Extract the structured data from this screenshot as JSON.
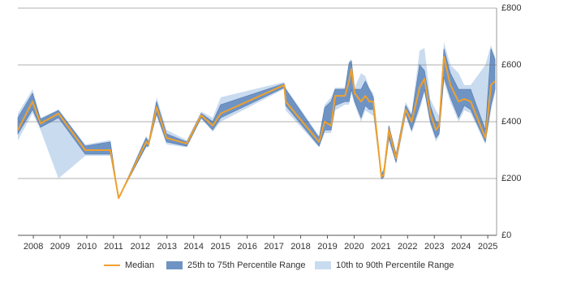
{
  "chart_data": {
    "type": "line",
    "x": [
      2007.42,
      2007.97,
      2008.27,
      2008.94,
      2009.94,
      2010.88,
      2011.19,
      2012.22,
      2012.31,
      2012.61,
      2012.98,
      2013.74,
      2014.28,
      2014.71,
      2015.01,
      2017.38,
      2017.44,
      2018.69,
      2018.9,
      2019.14,
      2019.29,
      2019.66,
      2019.81,
      2019.9,
      2020.02,
      2020.26,
      2020.42,
      2020.57,
      2020.72,
      2021.02,
      2021.11,
      2021.3,
      2021.57,
      2021.93,
      2022.15,
      2022.45,
      2022.63,
      2022.85,
      2023.06,
      2023.18,
      2023.36,
      2023.6,
      2023.91,
      2024.12,
      2024.36,
      2024.91,
      2025.12,
      2025.27
    ],
    "series": [
      {
        "name": "10th to 90th Percentile Range",
        "color": "#c9dbef",
        "high": [
          429,
          514,
          414,
          443,
          320,
          335,
          131,
          350,
          335,
          486,
          371,
          335,
          436,
          414,
          486,
          540,
          520,
          350,
          460,
          486,
          520,
          520,
          614,
          620,
          520,
          571,
          560,
          520,
          500,
          220,
          240,
          390,
          290,
          470,
          430,
          650,
          660,
          480,
          440,
          420,
          680,
          600,
          571,
          529,
          529,
          600,
          670,
          629
        ],
        "low": [
          334,
          430,
          370,
          200,
          280,
          280,
          131,
          310,
          310,
          420,
          320,
          310,
          410,
          365,
          400,
          515,
          440,
          310,
          360,
          360,
          440,
          460,
          460,
          500,
          460,
          400,
          440,
          430,
          420,
          195,
          200,
          330,
          250,
          420,
          360,
          440,
          500,
          390,
          330,
          350,
          540,
          470,
          400,
          440,
          430,
          320,
          440,
          500
        ]
      },
      {
        "name": "25th to 75th Percentile Range",
        "color": "#6f94c4",
        "high": [
          414,
          500,
          409,
          440,
          314,
          329,
          131,
          343,
          329,
          471,
          357,
          329,
          429,
          400,
          460,
          534,
          514,
          343,
          450,
          471,
          514,
          514,
          606,
          614,
          514,
          514,
          543,
          514,
          486,
          214,
          229,
          386,
          286,
          457,
          420,
          600,
          580,
          457,
          400,
          400,
          657,
          571,
          514,
          514,
          514,
          371,
          657,
          620
        ],
        "low": [
          357,
          443,
          380,
          414,
          286,
          286,
          131,
          314,
          314,
          429,
          329,
          314,
          414,
          371,
          414,
          520,
          457,
          314,
          371,
          371,
          457,
          471,
          471,
          514,
          471,
          414,
          457,
          443,
          443,
          200,
          206,
          343,
          257,
          429,
          371,
          457,
          514,
          400,
          343,
          357,
          557,
          486,
          414,
          457,
          443,
          329,
          457,
          514
        ]
      },
      {
        "name": "Median",
        "color": "#f0a02c",
        "values": [
          371,
          471,
          394,
          429,
          300,
          300,
          131,
          329,
          320,
          451,
          343,
          323,
          423,
          386,
          429,
          529,
          471,
          329,
          400,
          386,
          491,
          491,
          543,
          586,
          500,
          471,
          491,
          471,
          471,
          206,
          214,
          371,
          271,
          443,
          400,
          520,
          551,
          429,
          371,
          386,
          629,
          529,
          471,
          480,
          471,
          343,
          529,
          543
        ]
      }
    ],
    "xlim": [
      2007.42,
      2025.33
    ],
    "xticks": [
      2008,
      2009,
      2010,
      2011,
      2012,
      2013,
      2014,
      2015,
      2016,
      2017,
      2018,
      2019,
      2020,
      2021,
      2022,
      2023,
      2024,
      2025
    ],
    "ylim": [
      0,
      800
    ],
    "yticks": [
      {
        "value": 0,
        "label": "£0"
      },
      {
        "value": 200,
        "label": "£200"
      },
      {
        "value": 400,
        "label": "£400"
      },
      {
        "value": 600,
        "label": "£600"
      },
      {
        "value": 800,
        "label": "£800"
      }
    ],
    "grid": true
  }
}
